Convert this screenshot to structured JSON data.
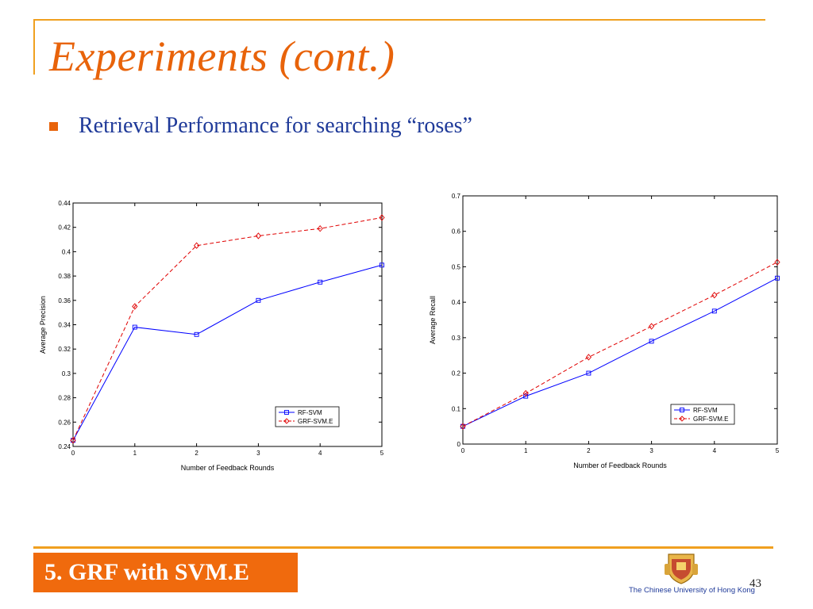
{
  "slide": {
    "title": "Experiments (cont.)",
    "bullet": "Retrieval Performance for searching “roses”",
    "footer_label": "5. GRF with SVM.E",
    "university": "The Chinese University of Hong Kong",
    "page_number": "43"
  },
  "colors": {
    "accent_orange": "#e8630a",
    "line_orange": "#f0a020",
    "text_blue": "#1f3a99",
    "series_blue": "#0000ff",
    "series_red": "#e00000"
  },
  "chart_data": [
    {
      "type": "line",
      "xlabel": "Number of Feedback Rounds",
      "ylabel": "Average Precision",
      "x": [
        0,
        1,
        2,
        3,
        4,
        5
      ],
      "xlim": [
        0,
        5
      ],
      "ylim": [
        0.24,
        0.44
      ],
      "xticks": [
        "0",
        "1",
        "2",
        "3",
        "4",
        "5"
      ],
      "yticks": [
        "0.24",
        "0.26",
        "0.28",
        "0.3",
        "0.32",
        "0.34",
        "0.36",
        "0.38",
        "0.4",
        "0.42",
        "0.44"
      ],
      "legend": "bottom-right",
      "grid": false,
      "series": [
        {
          "name": "RF-SVM",
          "values": [
            0.245,
            0.338,
            0.332,
            0.36,
            0.375,
            0.389
          ],
          "color": "#0000ff",
          "style": "solid",
          "marker": "square"
        },
        {
          "name": "GRF-SVM.E",
          "values": [
            0.245,
            0.355,
            0.405,
            0.413,
            0.419,
            0.428
          ],
          "color": "#e00000",
          "style": "dashed",
          "marker": "diamond"
        }
      ]
    },
    {
      "type": "line",
      "xlabel": "Number of Feedback Rounds",
      "ylabel": "Average Recall",
      "x": [
        0,
        1,
        2,
        3,
        4,
        5
      ],
      "xlim": [
        0,
        5
      ],
      "ylim": [
        0,
        0.7
      ],
      "xticks": [
        "0",
        "1",
        "2",
        "3",
        "4",
        "5"
      ],
      "yticks": [
        "0",
        "0.1",
        "0.2",
        "0.3",
        "0.4",
        "0.5",
        "0.6",
        "0.7"
      ],
      "legend": "bottom-right",
      "grid": false,
      "series": [
        {
          "name": "RF-SVM",
          "values": [
            0.05,
            0.135,
            0.2,
            0.29,
            0.375,
            0.468
          ],
          "color": "#0000ff",
          "style": "solid",
          "marker": "square"
        },
        {
          "name": "GRF-SVM.E",
          "values": [
            0.05,
            0.143,
            0.245,
            0.332,
            0.42,
            0.513
          ],
          "color": "#e00000",
          "style": "dashed",
          "marker": "diamond"
        }
      ]
    }
  ]
}
